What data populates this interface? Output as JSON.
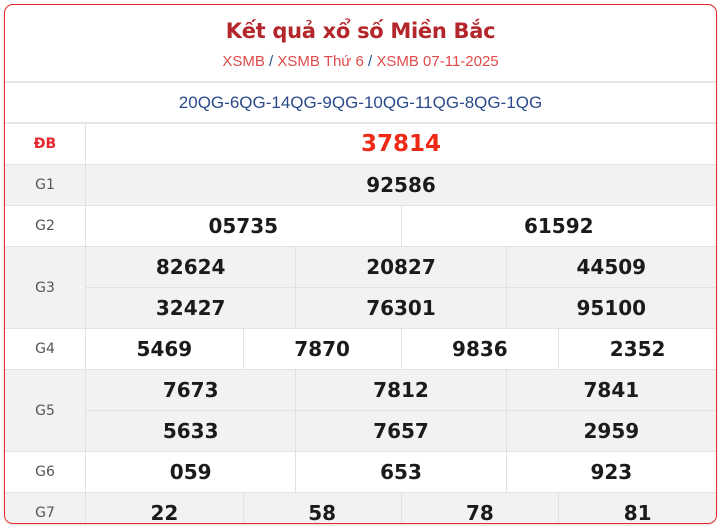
{
  "header": {
    "title": "Kết quả xổ số Miền Bắc",
    "breadcrumb": [
      "XSMB",
      "XSMB Thứ 6",
      "XSMB 07-11-2025"
    ],
    "separator": "/"
  },
  "codes": "20QG-6QG-14QG-9QG-10QG-11QG-8QG-1QG",
  "colors": {
    "accent": "#e8262d",
    "title": "#b3262b",
    "special": "#ee2a16",
    "codes": "#2a4a8a"
  },
  "prizes": [
    {
      "label": "ĐB",
      "lines": [
        [
          "37814"
        ]
      ]
    },
    {
      "label": "G1",
      "lines": [
        [
          "92586"
        ]
      ]
    },
    {
      "label": "G2",
      "lines": [
        [
          "05735",
          "61592"
        ]
      ]
    },
    {
      "label": "G3",
      "lines": [
        [
          "82624",
          "20827",
          "44509"
        ],
        [
          "32427",
          "76301",
          "95100"
        ]
      ]
    },
    {
      "label": "G4",
      "lines": [
        [
          "5469",
          "7870",
          "9836",
          "2352"
        ]
      ]
    },
    {
      "label": "G5",
      "lines": [
        [
          "7673",
          "7812",
          "7841"
        ],
        [
          "5633",
          "7657",
          "2959"
        ]
      ]
    },
    {
      "label": "G6",
      "lines": [
        [
          "059",
          "653",
          "923"
        ]
      ]
    },
    {
      "label": "G7",
      "lines": [
        [
          "22",
          "58",
          "78",
          "81"
        ]
      ]
    }
  ]
}
